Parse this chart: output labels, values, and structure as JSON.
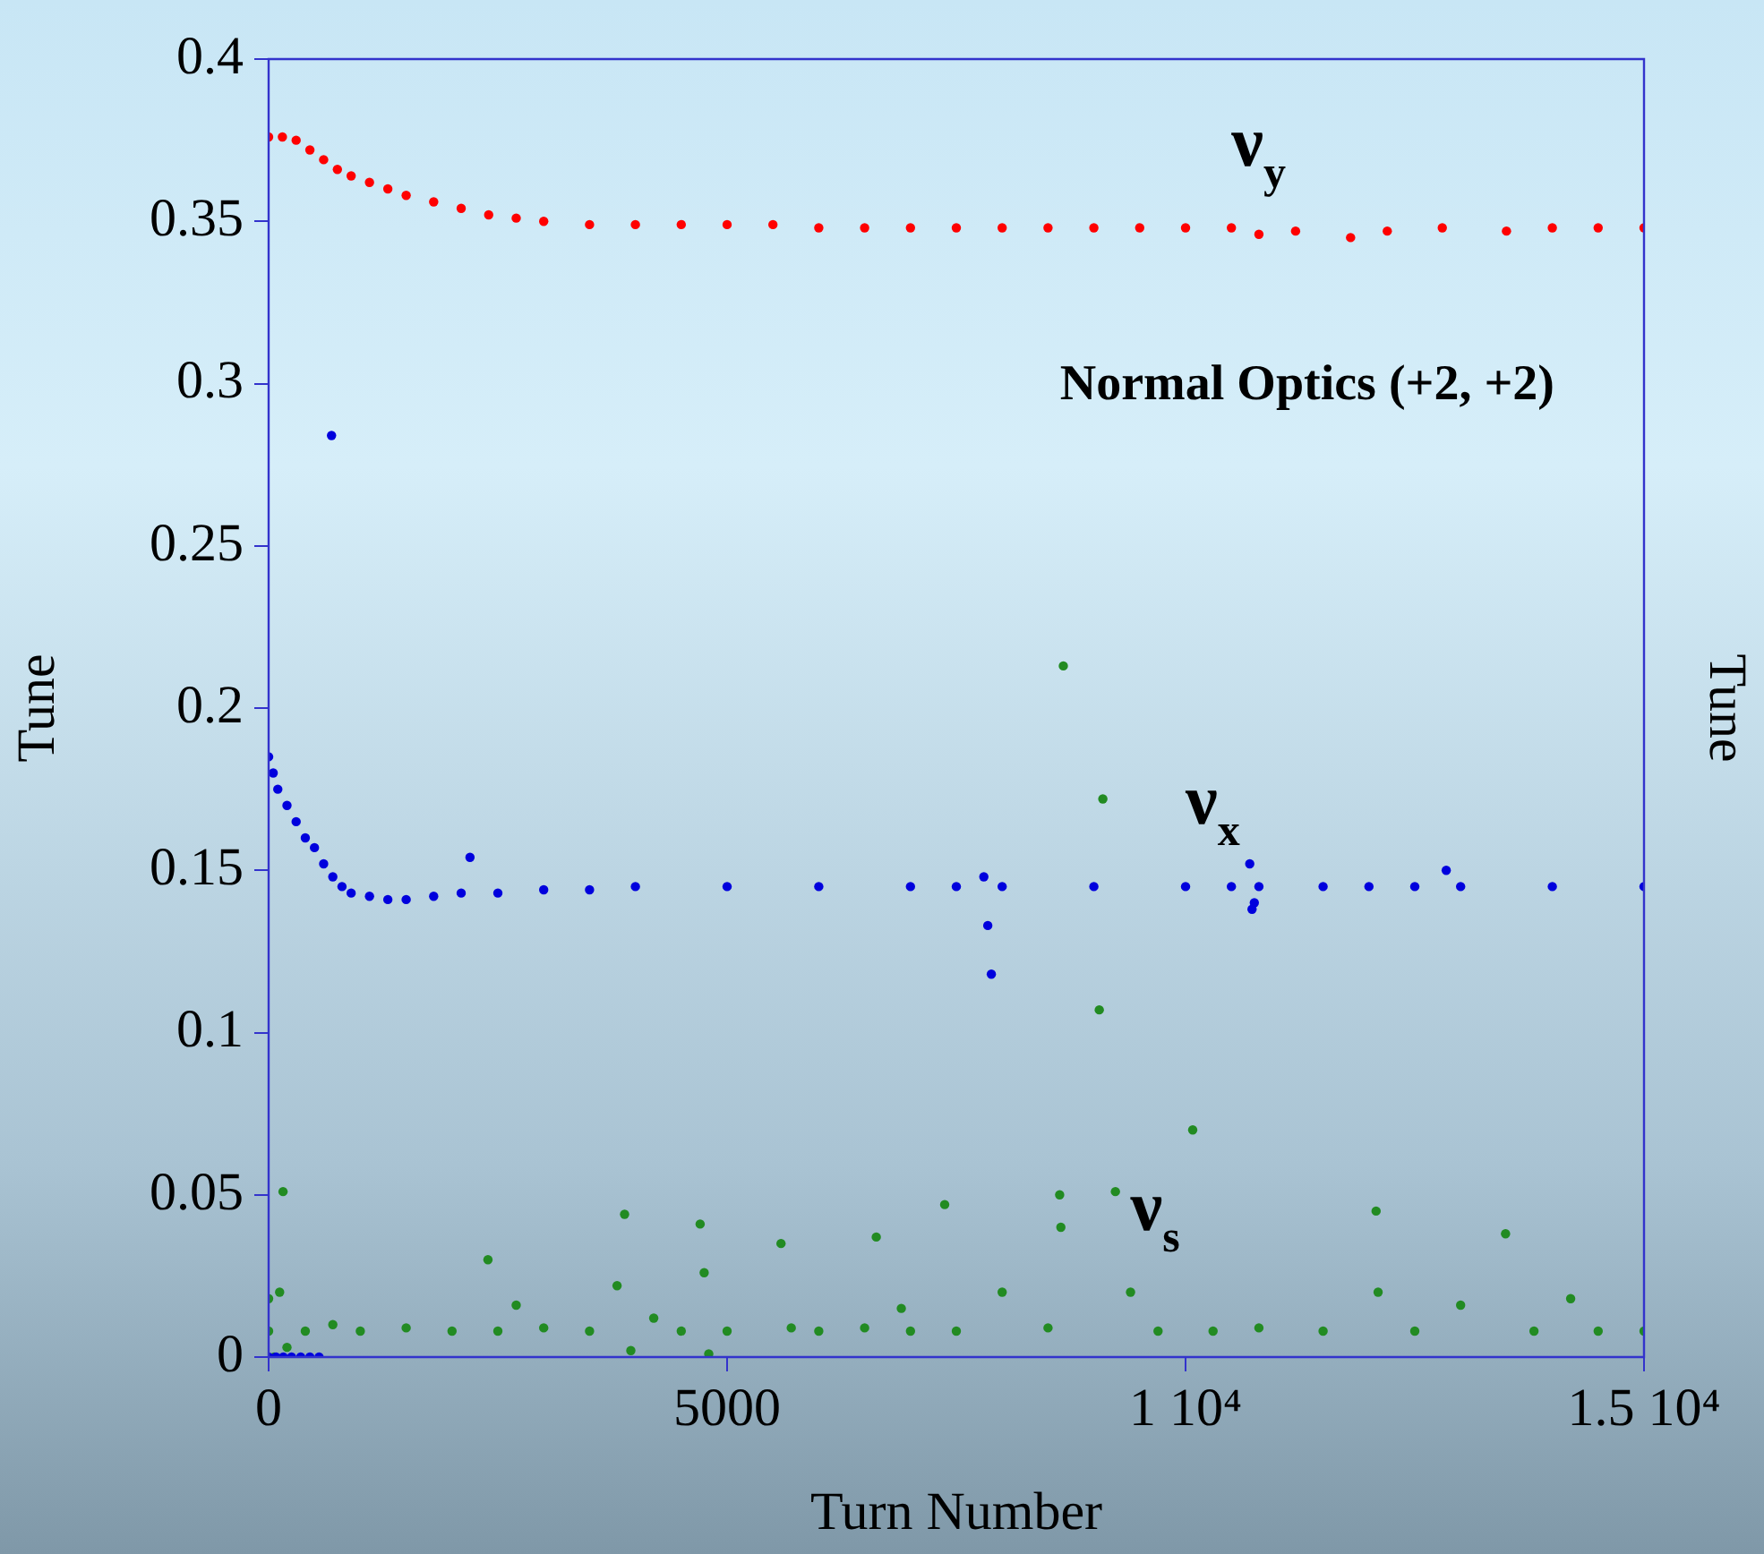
{
  "chart_data": {
    "type": "scatter",
    "xlabel": "Turn Number",
    "ylabel": "Tune",
    "y2label": "Tune",
    "annotations": [
      "Normal Optics (+2, +2)"
    ],
    "xlim": [
      0,
      15000
    ],
    "xticks": [
      0,
      5000,
      {
        "value": 10000,
        "label": "1 10⁴"
      },
      {
        "value": 15000,
        "label": "1.5 10⁴"
      }
    ],
    "ylim": [
      0,
      0.4
    ],
    "yticks": [
      0,
      0.05,
      0.1,
      0.15,
      0.2,
      0.25,
      0.3,
      0.35,
      0.4
    ],
    "grid": false,
    "legend": false,
    "marker": "circle",
    "series": [
      {
        "name": "ν$_{y}$",
        "color": "#ff0000",
        "x": [
          0,
          150,
          300,
          450,
          600,
          750,
          900,
          1100,
          1300,
          1500,
          1800,
          2100,
          2400,
          2700,
          3000,
          3500,
          4000,
          4500,
          5000,
          5500,
          6000,
          6500,
          7000,
          7500,
          8000,
          8500,
          9000,
          9500,
          10000,
          10500,
          10800,
          11200,
          11800,
          12200,
          12800,
          13500,
          14000,
          14500,
          15000
        ],
        "values": [
          0.376,
          0.376,
          0.375,
          0.372,
          0.369,
          0.366,
          0.364,
          0.362,
          0.36,
          0.358,
          0.356,
          0.354,
          0.352,
          0.351,
          0.35,
          0.349,
          0.349,
          0.349,
          0.349,
          0.349,
          0.348,
          0.348,
          0.348,
          0.348,
          0.348,
          0.348,
          0.348,
          0.348,
          0.348,
          0.348,
          0.346,
          0.347,
          0.345,
          0.347,
          0.348,
          0.347,
          0.348,
          0.348,
          0.348
        ]
      },
      {
        "name": "ν$_{x}$",
        "color": "#0000dd",
        "x": [
          0,
          0,
          50,
          80,
          100,
          160,
          200,
          250,
          300,
          350,
          400,
          450,
          500,
          550,
          600,
          686,
          700,
          800,
          900,
          1100,
          1300,
          1500,
          1800,
          2100,
          2196,
          2500,
          3000,
          3500,
          4000,
          5000,
          6000,
          7000,
          7500,
          7800,
          7843,
          7882,
          8000,
          9000,
          10000,
          10500,
          10700,
          10725,
          10750,
          10800,
          11500,
          12000,
          12500,
          12843,
          13000,
          14000,
          15000
        ],
        "values": [
          0.185,
          0,
          0.18,
          0,
          0.175,
          0,
          0.17,
          0,
          0.165,
          0,
          0.16,
          0,
          0.157,
          0,
          0.152,
          0.284,
          0.148,
          0.145,
          0.143,
          0.142,
          0.141,
          0.141,
          0.142,
          0.143,
          0.154,
          0.143,
          0.144,
          0.144,
          0.145,
          0.145,
          0.145,
          0.145,
          0.145,
          0.148,
          0.133,
          0.118,
          0.145,
          0.145,
          0.145,
          0.145,
          0.152,
          0.138,
          0.14,
          0.145,
          0.145,
          0.145,
          0.145,
          0.15,
          0.145,
          0.145,
          0.145
        ]
      },
      {
        "name": "ν$_{s}$",
        "color": "#228b22",
        "x": [
          0,
          0,
          60,
          120,
          157,
          200,
          400,
          700,
          1000,
          1500,
          2000,
          2392,
          2500,
          2700,
          3000,
          3500,
          3800,
          3882,
          3950,
          4200,
          4500,
          4706,
          4750,
          4800,
          5000,
          5588,
          5700,
          6000,
          6500,
          6627,
          6900,
          7000,
          7373,
          7500,
          8000,
          8500,
          8627,
          8640,
          8667,
          9059,
          9098,
          9235,
          9400,
          9700,
          10078,
          10300,
          10800,
          11500,
          12078,
          12100,
          12500,
          13000,
          13490,
          13800,
          14200,
          14500,
          15000
        ],
        "values": [
          0.008,
          0.018,
          0,
          0.02,
          0.051,
          0.003,
          0.008,
          0.01,
          0.008,
          0.009,
          0.008,
          0.03,
          0.008,
          0.016,
          0.009,
          0.008,
          0.022,
          0.044,
          0.002,
          0.012,
          0.008,
          0.041,
          0.026,
          0.001,
          0.008,
          0.035,
          0.009,
          0.008,
          0.009,
          0.037,
          0.015,
          0.008,
          0.047,
          0.008,
          0.02,
          0.009,
          0.05,
          0.04,
          0.213,
          0.107,
          0.172,
          0.051,
          0.02,
          0.008,
          0.07,
          0.008,
          0.009,
          0.008,
          0.045,
          0.02,
          0.008,
          0.016,
          0.038,
          0.008,
          0.018,
          0.008,
          0.008
        ]
      }
    ]
  }
}
